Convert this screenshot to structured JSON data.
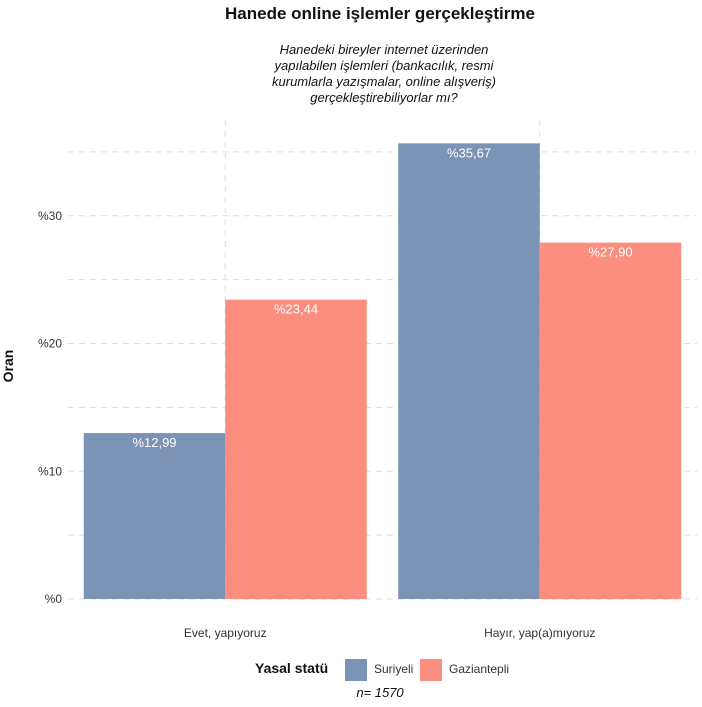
{
  "chart_data": {
    "type": "bar",
    "title": "Hanede online işlemler gerçekleştirme",
    "subtitle_lines": [
      "Hanedeki bireyler internet üzerinden",
      "yapılabilen işlemleri (bankacılık, resmi",
      "kurumlarla yazışmalar, online alışveriş)",
      "gerçekleştirebiliyorlar mı?"
    ],
    "xlabel": "",
    "ylabel": "Oran",
    "ylim": [
      0,
      37.5
    ],
    "yticks": [
      0,
      10,
      20,
      30
    ],
    "ytick_labels": [
      "%0",
      "%10",
      "%20",
      "%30"
    ],
    "grid": true,
    "categories": [
      "Evet, yapıyoruz",
      "Hayır, yap(a)mıyoruz"
    ],
    "series": [
      {
        "name": "Suriyeli",
        "color": "#7b93b5",
        "values": [
          12.99,
          35.67
        ],
        "labels": [
          "%12,99",
          "%35,67"
        ]
      },
      {
        "name": "Gaziantepli",
        "color": "#fb8e7e",
        "values": [
          23.44,
          27.9
        ],
        "labels": [
          "%23,44",
          "%27,90"
        ]
      }
    ],
    "legend": {
      "title": "Yasal statü",
      "position": "bottom"
    },
    "caption": "n=  1570"
  }
}
